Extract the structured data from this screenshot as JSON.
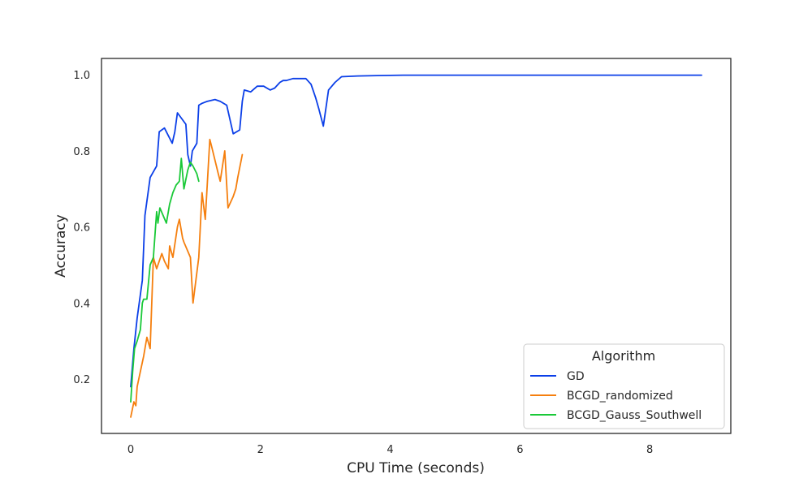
{
  "chart_data": {
    "type": "line",
    "xlabel": "CPU Time (seconds)",
    "ylabel": "Accuracy",
    "xlim": [
      -0.45,
      9.25
    ],
    "ylim": [
      0.057,
      1.043
    ],
    "xticks": [
      0,
      2,
      4,
      6,
      8
    ],
    "yticks": [
      0.2,
      0.4,
      0.6,
      0.8,
      1.0
    ],
    "xtick_labels": [
      "0",
      "2",
      "4",
      "6",
      "8"
    ],
    "ytick_labels": [
      "0.2",
      "0.4",
      "0.6",
      "0.8",
      "1.0"
    ],
    "grid": false,
    "legend": {
      "title": "Algorithm",
      "position": "bottom-right"
    },
    "series": [
      {
        "name": "GD",
        "color": "#0b3fe8",
        "x": [
          0.0,
          0.05,
          0.1,
          0.18,
          0.22,
          0.3,
          0.4,
          0.44,
          0.52,
          0.64,
          0.68,
          0.72,
          0.85,
          0.88,
          0.92,
          0.95,
          1.02,
          1.05,
          1.1,
          1.18,
          1.3,
          1.38,
          1.48,
          1.58,
          1.68,
          1.72,
          1.75,
          1.85,
          1.95,
          2.05,
          2.15,
          2.22,
          2.3,
          2.35,
          2.4,
          2.5,
          2.6,
          2.7,
          2.78,
          2.85,
          2.9,
          2.97,
          3.05,
          3.15,
          3.25,
          3.5,
          3.8,
          4.2,
          5.0,
          6.0,
          7.0,
          8.0,
          8.8
        ],
        "y": [
          0.18,
          0.28,
          0.36,
          0.46,
          0.63,
          0.73,
          0.76,
          0.85,
          0.86,
          0.82,
          0.85,
          0.9,
          0.87,
          0.79,
          0.76,
          0.8,
          0.82,
          0.92,
          0.925,
          0.93,
          0.935,
          0.93,
          0.92,
          0.845,
          0.855,
          0.93,
          0.96,
          0.955,
          0.97,
          0.97,
          0.96,
          0.965,
          0.98,
          0.985,
          0.985,
          0.99,
          0.99,
          0.99,
          0.975,
          0.94,
          0.91,
          0.865,
          0.96,
          0.98,
          0.995,
          0.997,
          0.998,
          0.999,
          0.999,
          0.999,
          0.999,
          0.999,
          0.999
        ]
      },
      {
        "name": "BCGD_randomized",
        "color": "#f57f0e",
        "x": [
          0.0,
          0.05,
          0.08,
          0.1,
          0.15,
          0.2,
          0.25,
          0.3,
          0.35,
          0.4,
          0.48,
          0.52,
          0.58,
          0.6,
          0.65,
          0.72,
          0.75,
          0.8,
          0.82,
          0.92,
          0.96,
          1.05,
          1.1,
          1.15,
          1.22,
          1.25,
          1.35,
          1.38,
          1.45,
          1.5,
          1.58,
          1.62,
          1.65,
          1.72
        ],
        "y": [
          0.1,
          0.14,
          0.13,
          0.18,
          0.22,
          0.26,
          0.31,
          0.28,
          0.52,
          0.49,
          0.53,
          0.51,
          0.49,
          0.55,
          0.52,
          0.6,
          0.62,
          0.57,
          0.56,
          0.52,
          0.4,
          0.52,
          0.69,
          0.62,
          0.83,
          0.81,
          0.74,
          0.72,
          0.8,
          0.65,
          0.68,
          0.7,
          0.73,
          0.79
        ]
      },
      {
        "name": "BCGD_Gauss_Southwell",
        "color": "#1ac938",
        "x": [
          0.0,
          0.03,
          0.06,
          0.1,
          0.15,
          0.18,
          0.2,
          0.25,
          0.3,
          0.35,
          0.4,
          0.42,
          0.45,
          0.5,
          0.55,
          0.6,
          0.65,
          0.7,
          0.75,
          0.78,
          0.82,
          0.88,
          0.92,
          0.96,
          1.02,
          1.05
        ],
        "y": [
          0.14,
          0.22,
          0.28,
          0.3,
          0.33,
          0.4,
          0.41,
          0.41,
          0.5,
          0.52,
          0.64,
          0.61,
          0.65,
          0.63,
          0.61,
          0.66,
          0.69,
          0.71,
          0.72,
          0.78,
          0.7,
          0.75,
          0.77,
          0.76,
          0.74,
          0.72
        ]
      }
    ]
  }
}
